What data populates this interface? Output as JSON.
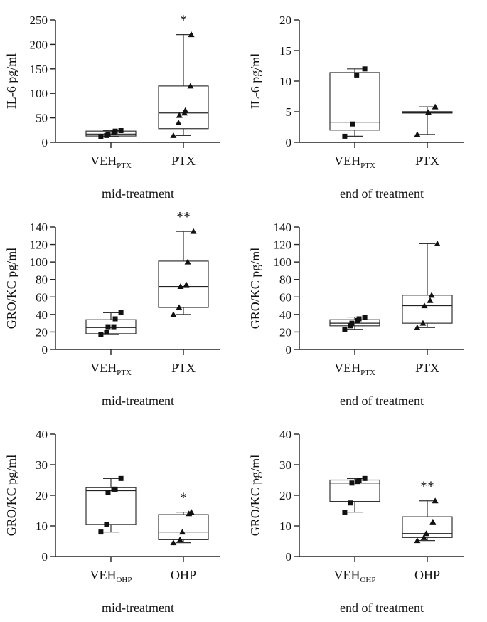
{
  "figure": {
    "panels": [
      {
        "id": "p1"
      },
      {
        "id": "p2"
      },
      {
        "id": "p3"
      },
      {
        "id": "p4"
      },
      {
        "id": "p5"
      },
      {
        "id": "p6"
      }
    ]
  },
  "chart_data": [
    {
      "type": "box",
      "ylabel": "IL-6 pg/ml",
      "xlabel": "mid-treatment",
      "ylim": [
        0,
        250
      ],
      "yticks": [
        0,
        50,
        100,
        150,
        200,
        250
      ],
      "groups": [
        {
          "label": "VEH",
          "sub": "PTX",
          "marker": "square",
          "whisker": [
            12,
            24
          ],
          "q1": 13,
          "median": 17,
          "q3": 23,
          "points": [
            12,
            14,
            17,
            20,
            23,
            24
          ],
          "sig": ""
        },
        {
          "label": "PTX",
          "sub": "",
          "marker": "triangle",
          "whisker": [
            14,
            220
          ],
          "q1": 28,
          "median": 60,
          "q3": 115,
          "points": [
            14,
            40,
            55,
            60,
            65,
            115,
            220
          ],
          "sig": "*"
        }
      ]
    },
    {
      "type": "box",
      "ylabel": "IL-6 pg/ml",
      "xlabel": "end of treatment",
      "ylim": [
        0,
        20
      ],
      "yticks": [
        0,
        5,
        10,
        15,
        20
      ],
      "groups": [
        {
          "label": "VEH",
          "sub": "PTX",
          "marker": "square",
          "whisker": [
            1,
            12
          ],
          "q1": 2,
          "median": 3.3,
          "q3": 11.4,
          "points": [
            1,
            3,
            11,
            12
          ],
          "sig": ""
        },
        {
          "label": "PTX",
          "sub": "",
          "marker": "triangle",
          "whisker": [
            1.3,
            5.8
          ],
          "q1": 4.8,
          "median": 4.9,
          "q3": 5.0,
          "points": [
            1.3,
            4.9,
            5.8
          ],
          "sig": ""
        }
      ]
    },
    {
      "type": "box",
      "ylabel": "GRO/KC pg/ml",
      "xlabel": "mid-treatment",
      "ylim": [
        0,
        140
      ],
      "yticks": [
        0,
        20,
        40,
        60,
        80,
        100,
        120,
        140
      ],
      "groups": [
        {
          "label": "VEH",
          "sub": "PTX",
          "marker": "square",
          "whisker": [
            17,
            42
          ],
          "q1": 18,
          "median": 25,
          "q3": 34,
          "points": [
            17,
            20,
            26,
            26,
            35,
            42
          ],
          "sig": ""
        },
        {
          "label": "PTX",
          "sub": "",
          "marker": "triangle",
          "whisker": [
            40,
            135
          ],
          "q1": 48,
          "median": 72,
          "q3": 101,
          "points": [
            40,
            48,
            72,
            74,
            100,
            135
          ],
          "sig": "**"
        }
      ]
    },
    {
      "type": "box",
      "ylabel": "GRO/KC pg/ml",
      "xlabel": "end of treatment",
      "ylim": [
        0,
        140
      ],
      "yticks": [
        0,
        20,
        40,
        60,
        80,
        100,
        120,
        140
      ],
      "groups": [
        {
          "label": "VEH",
          "sub": "PTX",
          "marker": "square",
          "whisker": [
            23,
            37
          ],
          "q1": 27,
          "median": 30,
          "q3": 34,
          "points": [
            23,
            27,
            30,
            33,
            35,
            37
          ],
          "sig": ""
        },
        {
          "label": "PTX",
          "sub": "",
          "marker": "triangle",
          "whisker": [
            25,
            121
          ],
          "q1": 30,
          "median": 50,
          "q3": 62,
          "points": [
            25,
            30,
            50,
            56,
            62,
            121
          ],
          "sig": ""
        }
      ]
    },
    {
      "type": "box",
      "ylabel": "GRO/KC pg/ml",
      "xlabel": "mid-treatment",
      "ylim": [
        0,
        40
      ],
      "yticks": [
        0,
        10,
        20,
        30,
        40
      ],
      "groups": [
        {
          "label": "VEH",
          "sub": "OHP",
          "marker": "square",
          "whisker": [
            8,
            25.5
          ],
          "q1": 10.5,
          "median": 21.5,
          "q3": 22.5,
          "points": [
            8,
            10.5,
            21,
            22,
            22,
            25.5
          ],
          "sig": ""
        },
        {
          "label": "OHP",
          "sub": "",
          "marker": "triangle",
          "whisker": [
            4.5,
            14.5
          ],
          "q1": 5.5,
          "median": 8,
          "q3": 13.7,
          "points": [
            4.5,
            5.5,
            8,
            14,
            14.5
          ],
          "sig": "*"
        }
      ]
    },
    {
      "type": "box",
      "ylabel": "GRO/KC pg/ml",
      "xlabel": "end of treatment",
      "ylim": [
        0,
        40
      ],
      "yticks": [
        0,
        10,
        20,
        30,
        40
      ],
      "groups": [
        {
          "label": "VEH",
          "sub": "OHP",
          "marker": "square",
          "whisker": [
            14.5,
            25.5
          ],
          "q1": 18,
          "median": 24,
          "q3": 25,
          "points": [
            14.5,
            17.5,
            24,
            24.5,
            25,
            25.5
          ],
          "sig": ""
        },
        {
          "label": "OHP",
          "sub": "",
          "marker": "triangle",
          "whisker": [
            5.2,
            18.2
          ],
          "q1": 6.2,
          "median": 7.5,
          "q3": 13,
          "points": [
            5.2,
            6.2,
            7.5,
            11.3,
            18.2
          ],
          "sig": "**"
        }
      ]
    }
  ]
}
